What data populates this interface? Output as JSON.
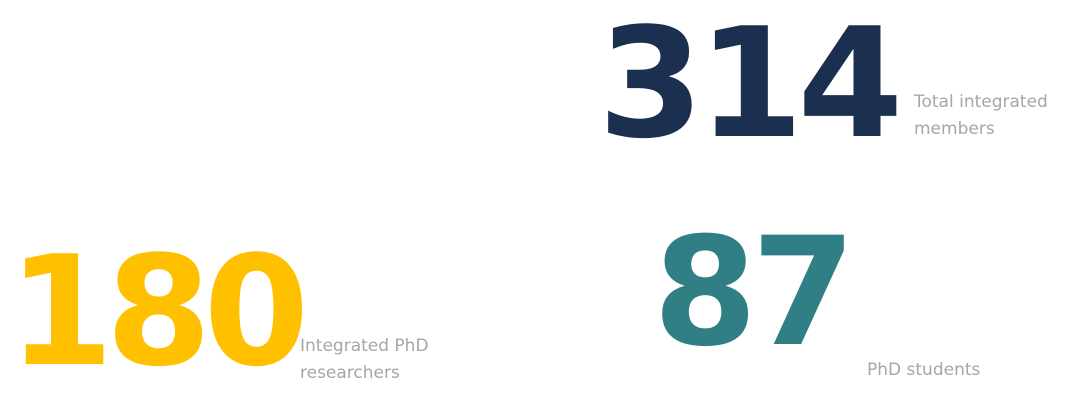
{
  "stats": [
    {
      "value": "314",
      "label_line1": "Total integrated",
      "label_line2": "members",
      "color": "#1b3050"
    },
    {
      "value": "180",
      "label_line1": "Integrated PhD",
      "label_line2": "researchers",
      "color": "#ffc000"
    },
    {
      "value": "87",
      "label_line1": "PhD students",
      "label_line2": "",
      "color": "#2f7f85"
    }
  ]
}
